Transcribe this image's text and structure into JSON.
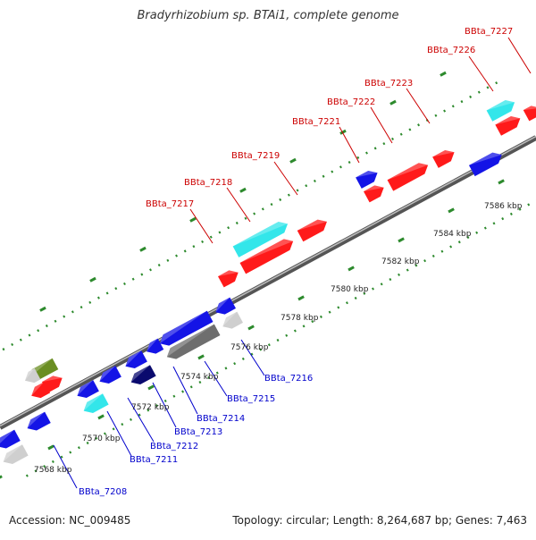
{
  "title": "Bradyrhizobium sp. BTAi1, complete genome",
  "footer": {
    "accession": "Accession: NC_009485",
    "summary": "Topology: circular; Length: 8,264,687 bp; Genes: 7,463"
  },
  "colors": {
    "red": "#ff1a1a",
    "blue": "#1414e6",
    "cyan": "#33e6ea",
    "navy": "#0a0a6e",
    "gray": "#6e6e6e",
    "lightgray": "#cfcfcf",
    "olive": "#6a8e22",
    "labelRed": "#cc0000",
    "labelBlue": "#0000cc",
    "tick": "#2d8a2d"
  },
  "ticks": [
    {
      "kbp": "7568 kbp"
    },
    {
      "kbp": "7570 kbp"
    },
    {
      "kbp": "7572 kbp"
    },
    {
      "kbp": "7574 kbp"
    },
    {
      "kbp": "7576 kbp"
    },
    {
      "kbp": "7578 kbp"
    },
    {
      "kbp": "7580 kbp"
    },
    {
      "kbp": "7582 kbp"
    },
    {
      "kbp": "7584 kbp"
    },
    {
      "kbp": "7586 kbp"
    }
  ],
  "labelsTop": [
    {
      "text": "BBta_7217"
    },
    {
      "text": "BBta_7218"
    },
    {
      "text": "BBta_7219"
    },
    {
      "text": "BBta_7221"
    },
    {
      "text": "BBta_7222"
    },
    {
      "text": "BBta_7223"
    },
    {
      "text": "BBta_7226"
    },
    {
      "text": "BBta_7227"
    }
  ],
  "labelsBottom": [
    {
      "text": "BBta_7208"
    },
    {
      "text": "BBta_7211"
    },
    {
      "text": "BBta_7212"
    },
    {
      "text": "BBta_7213"
    },
    {
      "text": "BBta_7214"
    },
    {
      "text": "BBta_7215"
    },
    {
      "text": "BBta_7216"
    }
  ]
}
